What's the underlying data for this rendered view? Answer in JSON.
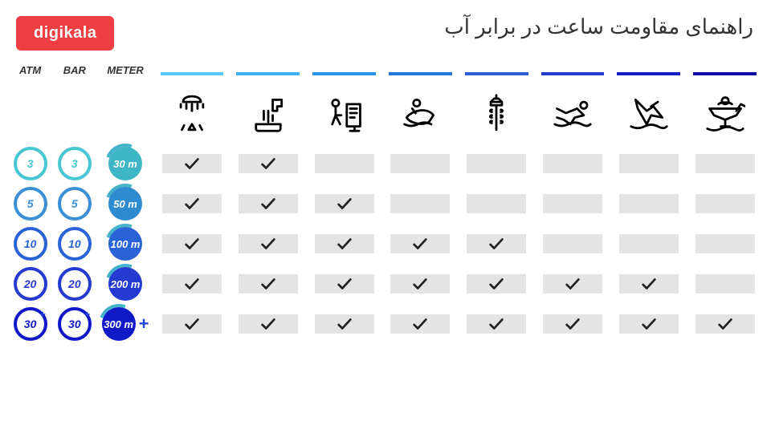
{
  "logo_text": "digikala",
  "logo_bg": "#ef3e41",
  "title": "راهنمای مقاومت ساعت در برابر آب",
  "title_color": "#333",
  "headers_abm": [
    "ATM",
    "BAR",
    "METER"
  ],
  "activity_cap_colors": [
    "#57c6ff",
    "#3eb3f5",
    "#2a96e8",
    "#2478dc",
    "#2a5dd6",
    "#233cd0",
    "#1720c8",
    "#0b0aa8"
  ],
  "rows": [
    {
      "atm": "3",
      "bar": "3",
      "meter": "30 m",
      "ring_color": "#49c6d3",
      "fill_color": "#3eb6c5",
      "checks": [
        true,
        true,
        false,
        false,
        false,
        false,
        false,
        false
      ]
    },
    {
      "atm": "5",
      "bar": "5",
      "meter": "50 m",
      "ring_color": "#3a8fd6",
      "fill_color": "#2f8bcf",
      "checks": [
        true,
        true,
        true,
        false,
        false,
        false,
        false,
        false
      ]
    },
    {
      "atm": "10",
      "bar": "10",
      "meter": "100 m",
      "ring_color": "#2a63d6",
      "fill_color": "#2a63d6",
      "checks": [
        true,
        true,
        true,
        true,
        true,
        false,
        false,
        false
      ]
    },
    {
      "atm": "20",
      "bar": "20",
      "meter": "200 m",
      "ring_color": "#243ad0",
      "fill_color": "#243ad0",
      "checks": [
        true,
        true,
        true,
        true,
        true,
        true,
        true,
        false
      ]
    },
    {
      "atm": "30",
      "bar": "30",
      "meter": "300 m",
      "ring_color": "#1118c8",
      "fill_color": "#1118c8",
      "plus": true,
      "checks": [
        true,
        true,
        true,
        true,
        true,
        true,
        true,
        true
      ]
    }
  ],
  "cell_bg": "#e4e4e4",
  "check_color": "#222",
  "icons_svg": [
    "M10 8c0-3 3-5 8-5s8 2 8 5H10z M13 10v4 M18 10v6 M23 10v4 M8 10v3 M28 10v3 M18 28l-3 5h6l-3-5z M11 29l-2 4 M25 29l2 4",
    "M7 28h22v4c0 1-1 2-2 2H9c-1 0-2-1-2-2v-4z M22 6h8v6h-4v4h-4V6z M14 16v8 M18 16v10 M22 20v5",
    "M10 6a3 3 0 1 1 0 6 3 3 0 0 1 0-6z M10 12v8l5 0 M10 20l-3 8 M10 20l4 8 M20 10h12v20H20z M23 14h6 M23 18h6 M23 22h4 M27 30v4 M23 34h8",
    "M15 6a3 3 0 1 1 0 6 3 3 0 0 1 0-6z M6 22c4-6 18-10 24-2l-4 6c-8 4-18 0-20-4z M14 18l-3-4 M4 28c4 2 8 2 12 0s8-2 12 0",
    "M18 2v3h-2l-3 3h10l-3-3h-2z M13 8h10v3H13z M18 11v22 M14 15c-2 0-2 2 0 2 M22 15c2 0 2 2 0 2 M14 20c-2 0-2 2 0 2 M22 20c2 0 2 2 0 2 M14 25c-2 0-2 2 0 2 M22 25c2 0 2 2 0 2",
    "M28 8a3 3 0 1 1 0 6 3 3 0 0 1 0-6z M4 14l8 4 10-4 6 6-8 2-4 6-6-4-6-2 M2 28c4 2 8 2 12 0s8-2 12 0 6 2 8 0",
    "M6 6l10 10 6-4 8 10-10-2-4 8-8-14z M20 12l6-4 M2 30c4 2 8 2 12 0s8-2 12 0 6 2 8 0",
    "M18 4a3 3 0 1 1 0 6 3 3 0 0 1 0-6z M4 14l28 0-4 6-10 4-10-4z M18 24v6 M14 30h8 M12 10c2-2 10-2 12 0 M2 32c4 2 8 2 12 0s8-2 12 0 6 2 8 0 M28 16l4-6 4 2"
  ]
}
